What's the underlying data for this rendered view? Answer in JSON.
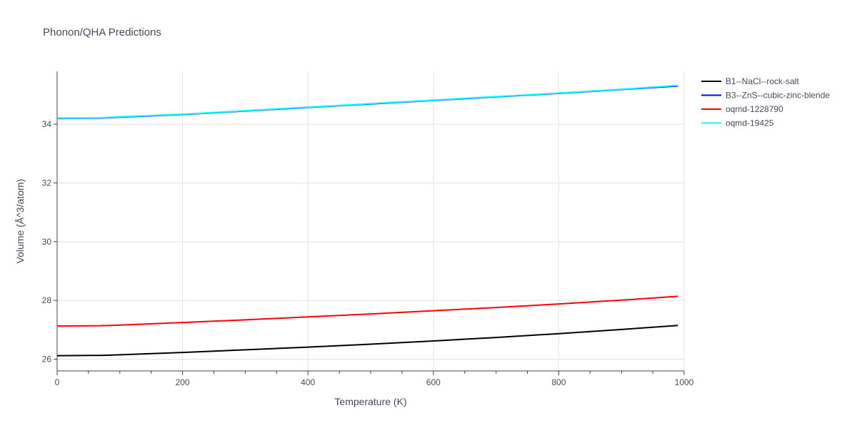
{
  "chart_data": {
    "type": "line",
    "title": "Phonon/QHA Predictions",
    "xlabel": "Temperature (K)",
    "ylabel": "Volume (Å^3/atom)",
    "xlim": [
      0,
      1000
    ],
    "ylim": [
      25.6,
      35.8
    ],
    "xticks": [
      0,
      200,
      400,
      600,
      800,
      1000
    ],
    "yticks": [
      26,
      28,
      30,
      32,
      34
    ],
    "minor_xticks": [
      50,
      100,
      150,
      250,
      300,
      350,
      450,
      500,
      550,
      650,
      700,
      750,
      850,
      900,
      950
    ],
    "grid": true,
    "legend_position": "top-right",
    "series": [
      {
        "name": "B1--NaCl--rock-salt",
        "color": "#000000",
        "x": [
          0,
          70,
          100,
          200,
          300,
          400,
          500,
          600,
          700,
          800,
          900,
          990
        ],
        "y": [
          26.12,
          26.13,
          26.15,
          26.23,
          26.32,
          26.41,
          26.51,
          26.62,
          26.74,
          26.87,
          27.01,
          27.15
        ]
      },
      {
        "name": "B3--ZnS--cubic-zinc-blende",
        "color": "#0000ff",
        "x": [
          0,
          70,
          100,
          200,
          300,
          400,
          500,
          600,
          700,
          800,
          900,
          990
        ],
        "y": [
          34.2,
          34.21,
          34.24,
          34.33,
          34.45,
          34.57,
          34.69,
          34.81,
          34.93,
          35.05,
          35.18,
          35.3
        ]
      },
      {
        "name": "oqmd-1228790",
        "color": "#ff0000",
        "x": [
          0,
          70,
          100,
          200,
          300,
          400,
          500,
          600,
          700,
          800,
          900,
          990
        ],
        "y": [
          27.13,
          27.14,
          27.16,
          27.25,
          27.34,
          27.44,
          27.54,
          27.65,
          27.76,
          27.88,
          28.01,
          28.14
        ]
      },
      {
        "name": "oqmd-19425",
        "color": "#00ffff",
        "x": [
          0,
          70,
          100,
          200,
          300,
          400,
          500,
          600,
          700,
          800,
          900,
          990
        ],
        "y": [
          34.21,
          34.22,
          34.25,
          34.34,
          34.46,
          34.58,
          34.7,
          34.82,
          34.94,
          35.06,
          35.19,
          35.32
        ]
      }
    ]
  }
}
